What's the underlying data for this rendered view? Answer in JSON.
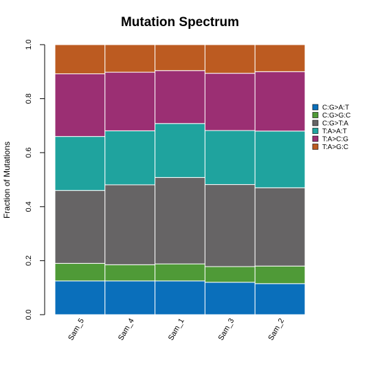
{
  "chart_data": {
    "type": "bar",
    "stacked": true,
    "title": "Mutation Spectrum",
    "xlabel": "",
    "ylabel": "Fraction of Mutations",
    "ylim": [
      0,
      1
    ],
    "yticks": [
      "0.0",
      "0.2",
      "0.4",
      "0.6",
      "0.8",
      "1.0"
    ],
    "categories": [
      "Sam_5",
      "Sam_4",
      "Sam_1",
      "Sam_3",
      "Sam_2"
    ],
    "series": [
      {
        "name": "C:G>A:T",
        "color": "#0a6fbb",
        "values": [
          0.125,
          0.125,
          0.125,
          0.12,
          0.115
        ]
      },
      {
        "name": "C:G>G:C",
        "color": "#4f9a37",
        "values": [
          0.065,
          0.06,
          0.063,
          0.058,
          0.065
        ]
      },
      {
        "name": "C:G>T:A",
        "color": "#666465",
        "values": [
          0.27,
          0.296,
          0.32,
          0.304,
          0.29
        ]
      },
      {
        "name": "T:A>A:T",
        "color": "#1fa39e",
        "values": [
          0.2,
          0.2,
          0.2,
          0.2,
          0.21
        ]
      },
      {
        "name": "T:A>C:G",
        "color": "#9b2f73",
        "values": [
          0.232,
          0.217,
          0.196,
          0.212,
          0.22
        ]
      },
      {
        "name": "T:A>G:C",
        "color": "#bc5b21",
        "values": [
          0.108,
          0.102,
          0.096,
          0.106,
          0.1
        ]
      }
    ],
    "grid": false,
    "legend_position": "right"
  }
}
